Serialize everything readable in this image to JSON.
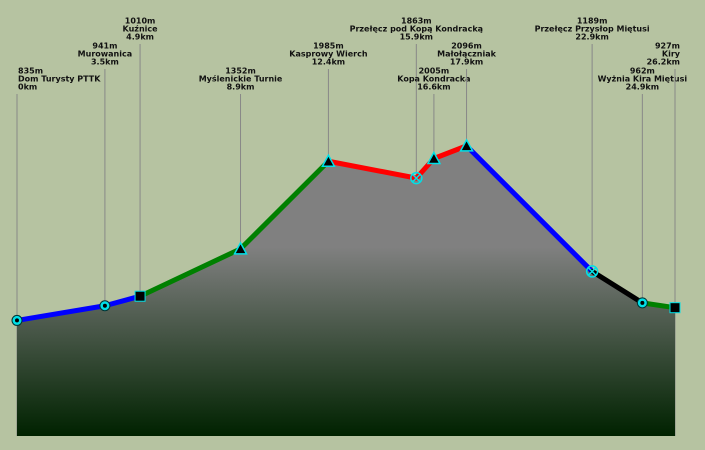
{
  "chart_data": {
    "type": "area",
    "names": [
      "Dom Turysty PTTK",
      "Murowanica",
      "Kuźnice",
      "Myślenickie Turnie",
      "Kasprowy Wierch",
      "Przełęcz pod Kopą Kondracką",
      "Kopa Kondracka",
      "Małołączniak",
      "Przełęcz Przysłop Miętusi",
      "Wyżnia Kira Miętusi",
      "Kiry"
    ],
    "x": [
      0,
      3.5,
      4.9,
      8.9,
      12.4,
      15.9,
      16.6,
      17.9,
      22.9,
      24.9,
      26.2
    ],
    "x_value_labels": [
      "0km",
      "3.5km",
      "4.9km",
      "8.9km",
      "12.4km",
      "15.9km",
      "16.6km",
      "17.9km",
      "22.9km",
      "24.9km",
      "26.2km"
    ],
    "values": [
      835,
      941,
      1010,
      1352,
      1985,
      1863,
      2005,
      2096,
      1189,
      962,
      927
    ],
    "value_labels": [
      "835m",
      "941m",
      "1010m",
      "1352m",
      "1985m",
      "1863m",
      "2005m",
      "2096m",
      "1189m",
      "962m",
      "927m"
    ],
    "markers": [
      "circle",
      "circle",
      "square",
      "triangle",
      "triangle",
      "cross",
      "triangle",
      "triangle",
      "cross",
      "circle",
      "square"
    ],
    "segment_colors": [
      "#0000ff",
      "#0000ff",
      "#008000",
      "#008000",
      "#ff0000",
      "#ff0000",
      "#ff0000",
      "#0000ff",
      "#000000",
      "#008000"
    ],
    "marker_color": "#00e0e8",
    "fill_top": "#808080",
    "fill_bottom": "#002200",
    "xlim": [
      0,
      26.2
    ],
    "ylim": [
      0,
      3150
    ]
  }
}
